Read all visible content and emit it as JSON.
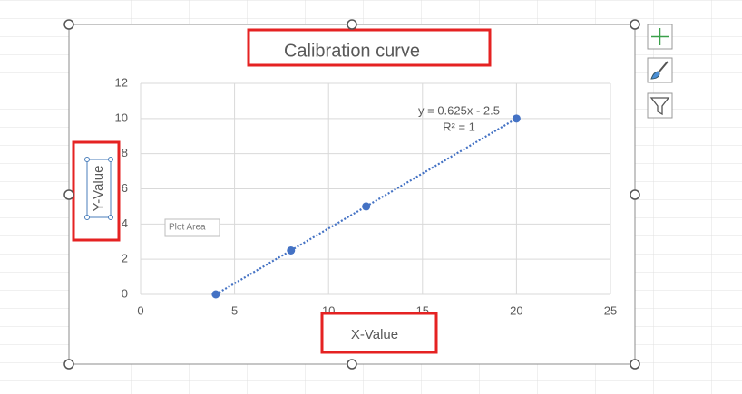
{
  "chart_data": {
    "type": "scatter",
    "title": "Calibration curve",
    "x_label": "X-Value",
    "y_label": "Y-Value",
    "x": [
      4,
      8,
      12,
      20
    ],
    "values": [
      0,
      2.5,
      5,
      10
    ],
    "color": "#4472c4",
    "xlim": [
      0,
      25
    ],
    "xticks": [
      0,
      5,
      10,
      15,
      20,
      25
    ],
    "ylim": [
      0,
      12
    ],
    "yticks": [
      0,
      2,
      4,
      6,
      8,
      10,
      12
    ],
    "grid": true,
    "trendline": true,
    "annotations": [
      "y = 0.625x - 2.5",
      "R² = 1"
    ],
    "tooltip": "Plot Area"
  }
}
